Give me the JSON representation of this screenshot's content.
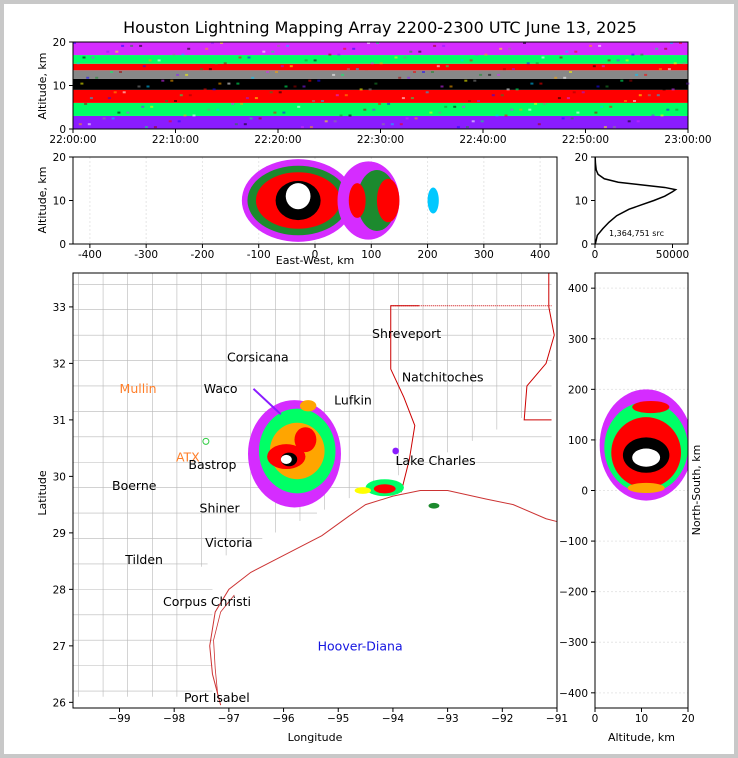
{
  "title": "Houston Lightning Mapping Array 2200-2300 UTC June 13, 2025",
  "colors": {
    "background": "#ffffff",
    "frame": "#c8c8c8",
    "map_counties": "#b8b8b8",
    "map_states": "#cc0000",
    "coast": "#cc3333",
    "city_label": "#000000",
    "orange_label": "#ff7f2a",
    "blue_label": "#1414e0",
    "green_marker": "#2ecc40"
  },
  "colorscale": [
    "#1a0aff",
    "#8a1cff",
    "#d52cff",
    "#00c8ff",
    "#00ff66",
    "#1c8a2e",
    "#ffff00",
    "#ffa500",
    "#ff0000",
    "#a00000",
    "#000000",
    "#888888",
    "#ffffff"
  ],
  "chart_data": [
    {
      "panel": "altitude-time",
      "type": "heatmap",
      "xlabel": "",
      "ylabel": "Altitude, km",
      "xlim": [
        "22:00:00",
        "23:00:00"
      ],
      "ylim": [
        0,
        20
      ],
      "xticks": [
        "22:00:00",
        "22:10:00",
        "22:20:00",
        "22:30:00",
        "22:40:00",
        "22:50:00",
        "23:00:00"
      ],
      "yticks": [
        0,
        10,
        20
      ],
      "bands": [
        {
          "alt_min": 0,
          "alt_max": 3,
          "level": 1
        },
        {
          "alt_min": 3,
          "alt_max": 6,
          "level": 4
        },
        {
          "alt_min": 6,
          "alt_max": 9,
          "level": 8
        },
        {
          "alt_min": 9,
          "alt_max": 11.5,
          "level": 10
        },
        {
          "alt_min": 11.5,
          "alt_max": 13.5,
          "level": 11
        },
        {
          "alt_min": 13.5,
          "alt_max": 15,
          "level": 8
        },
        {
          "alt_min": 15,
          "alt_max": 17,
          "level": 4
        },
        {
          "alt_min": 17,
          "alt_max": 20,
          "level": 2
        }
      ]
    },
    {
      "panel": "east-west-altitude",
      "type": "heatmap",
      "xlabel": "East-West, km",
      "ylabel": "Altitude, km",
      "xlim": [
        -430,
        430
      ],
      "ylim": [
        0,
        20
      ],
      "xticks": [
        -400,
        -300,
        -200,
        -100,
        0,
        100,
        200,
        300,
        400
      ],
      "yticks": [
        0,
        10,
        20
      ],
      "cells": [
        {
          "x": -30,
          "alt": 10,
          "rx": 100,
          "ry": 9.5,
          "level": 2
        },
        {
          "x": -30,
          "alt": 10,
          "rx": 90,
          "ry": 8,
          "level": 5
        },
        {
          "x": -30,
          "alt": 10,
          "rx": 75,
          "ry": 6.5,
          "level": 8
        },
        {
          "x": -30,
          "alt": 10,
          "rx": 40,
          "ry": 4.5,
          "level": 10
        },
        {
          "x": -30,
          "alt": 11,
          "rx": 22,
          "ry": 3,
          "level": 12
        },
        {
          "x": 95,
          "alt": 10,
          "rx": 55,
          "ry": 9,
          "level": 2
        },
        {
          "x": 110,
          "alt": 10,
          "rx": 35,
          "ry": 7,
          "level": 5
        },
        {
          "x": 130,
          "alt": 10,
          "rx": 20,
          "ry": 5,
          "level": 8
        },
        {
          "x": 75,
          "alt": 10,
          "rx": 15,
          "ry": 4,
          "level": 8
        },
        {
          "x": 210,
          "alt": 10,
          "rx": 10,
          "ry": 3,
          "level": 3
        }
      ]
    },
    {
      "panel": "altitude-histogram",
      "type": "line",
      "annotation": "1,364,751 src",
      "xlim": [
        0,
        60000
      ],
      "ylim": [
        0,
        20
      ],
      "xticks": [
        0,
        50000
      ],
      "yticks": [
        0,
        10,
        20
      ],
      "x": [
        200,
        1500,
        5000,
        9000,
        14000,
        22000,
        30000,
        38000,
        45000,
        50000,
        52000,
        45000,
        30000,
        15000,
        6000,
        2000,
        800,
        300,
        100
      ],
      "y": [
        0,
        2,
        3.5,
        5,
        6.5,
        8,
        9,
        10,
        11,
        12,
        12.5,
        13,
        13.6,
        14.2,
        15,
        16,
        17,
        18.5,
        20
      ]
    },
    {
      "panel": "plan-view",
      "type": "scatter",
      "xlabel": "Longitude",
      "ylabel": "Latitude",
      "xlim": [
        -99.85,
        -91
      ],
      "ylim": [
        25.9,
        33.6
      ],
      "xticks": [
        -99,
        -98,
        -97,
        -96,
        -95,
        -94,
        -93,
        -92,
        -91
      ],
      "yticks": [
        26,
        27,
        28,
        29,
        30,
        31,
        32,
        33
      ],
      "cells": [
        {
          "lon": -95.8,
          "lat": 30.4,
          "rx": 0.85,
          "ry": 0.95,
          "level": 2
        },
        {
          "lon": -95.75,
          "lat": 30.45,
          "rx": 0.7,
          "ry": 0.75,
          "level": 4
        },
        {
          "lon": -95.75,
          "lat": 30.45,
          "rx": 0.5,
          "ry": 0.5,
          "level": 7
        },
        {
          "lon": -95.95,
          "lat": 30.35,
          "rx": 0.35,
          "ry": 0.22,
          "level": 8
        },
        {
          "lon": -95.6,
          "lat": 30.65,
          "rx": 0.2,
          "ry": 0.22,
          "level": 8
        },
        {
          "lon": -95.9,
          "lat": 30.3,
          "rx": 0.15,
          "ry": 0.12,
          "level": 10
        },
        {
          "lon": -95.95,
          "lat": 30.3,
          "rx": 0.1,
          "ry": 0.08,
          "level": 12
        },
        {
          "lon": -95.55,
          "lat": 31.25,
          "rx": 0.15,
          "ry": 0.1,
          "level": 7
        },
        {
          "lon": -94.15,
          "lat": 29.8,
          "rx": 0.35,
          "ry": 0.15,
          "level": 4
        },
        {
          "lon": -94.15,
          "lat": 29.78,
          "rx": 0.2,
          "ry": 0.08,
          "level": 8
        },
        {
          "lon": -94.55,
          "lat": 29.75,
          "rx": 0.15,
          "ry": 0.06,
          "level": 6
        },
        {
          "lon": -93.25,
          "lat": 29.48,
          "rx": 0.1,
          "ry": 0.05,
          "level": 5
        },
        {
          "lon": -93.95,
          "lat": 30.45,
          "rx": 0.06,
          "ry": 0.06,
          "level": 1
        }
      ],
      "cities": [
        {
          "name": "Shreveport",
          "lon": -93.75,
          "lat": 32.52,
          "style": "dark"
        },
        {
          "name": "Corsicana",
          "lon": -96.47,
          "lat": 32.1,
          "style": "dark"
        },
        {
          "name": "Natchitoches",
          "lon": -93.09,
          "lat": 31.75,
          "style": "dark"
        },
        {
          "name": "Mullin",
          "lon": -98.66,
          "lat": 31.55,
          "style": "orange"
        },
        {
          "name": "Waco",
          "lon": -97.15,
          "lat": 31.55,
          "style": "dark"
        },
        {
          "name": "Lufkin",
          "lon": -94.73,
          "lat": 31.34,
          "style": "dark"
        },
        {
          "name": "ATX",
          "lon": -97.75,
          "lat": 30.33,
          "style": "orange"
        },
        {
          "name": "Bastrop",
          "lon": -97.3,
          "lat": 30.2,
          "style": "dark"
        },
        {
          "name": "Lake Charles",
          "lon": -93.22,
          "lat": 30.27,
          "style": "dark"
        },
        {
          "name": "Boerne",
          "lon": -98.73,
          "lat": 29.83,
          "style": "dark"
        },
        {
          "name": "Shiner",
          "lon": -97.17,
          "lat": 29.43,
          "style": "dark"
        },
        {
          "name": "Victoria",
          "lon": -97.0,
          "lat": 28.82,
          "style": "dark"
        },
        {
          "name": "Tilden",
          "lon": -98.55,
          "lat": 28.52,
          "style": "dark"
        },
        {
          "name": "Corpus Christi",
          "lon": -97.4,
          "lat": 27.78,
          "style": "dark"
        },
        {
          "name": "Hoover-Diana",
          "lon": -94.6,
          "lat": 26.99,
          "style": "blue"
        },
        {
          "name": "Port Isabel",
          "lon": -97.22,
          "lat": 26.08,
          "style": "dark"
        }
      ]
    },
    {
      "panel": "altitude-north-south",
      "type": "heatmap",
      "xlabel": "Altitude, km",
      "ylabel": "North-South, km",
      "xlim": [
        0,
        20
      ],
      "ylim": [
        -430,
        430
      ],
      "xticks": [
        0,
        10,
        20
      ],
      "yticks": [
        -400,
        -300,
        -200,
        -100,
        0,
        100,
        200,
        300,
        400
      ],
      "cells": [
        {
          "alt": 11,
          "y": 90,
          "rx": 10,
          "ry": 110,
          "level": 2
        },
        {
          "alt": 11,
          "y": 85,
          "rx": 9,
          "ry": 90,
          "level": 4
        },
        {
          "alt": 11,
          "y": 75,
          "rx": 7.5,
          "ry": 70,
          "level": 8
        },
        {
          "alt": 11,
          "y": 70,
          "rx": 5,
          "ry": 35,
          "level": 10
        },
        {
          "alt": 11,
          "y": 65,
          "rx": 3,
          "ry": 18,
          "level": 12
        },
        {
          "alt": 12,
          "y": 165,
          "rx": 4,
          "ry": 12,
          "level": 8
        },
        {
          "alt": 11,
          "y": 5,
          "rx": 4,
          "ry": 10,
          "level": 7
        }
      ]
    }
  ]
}
